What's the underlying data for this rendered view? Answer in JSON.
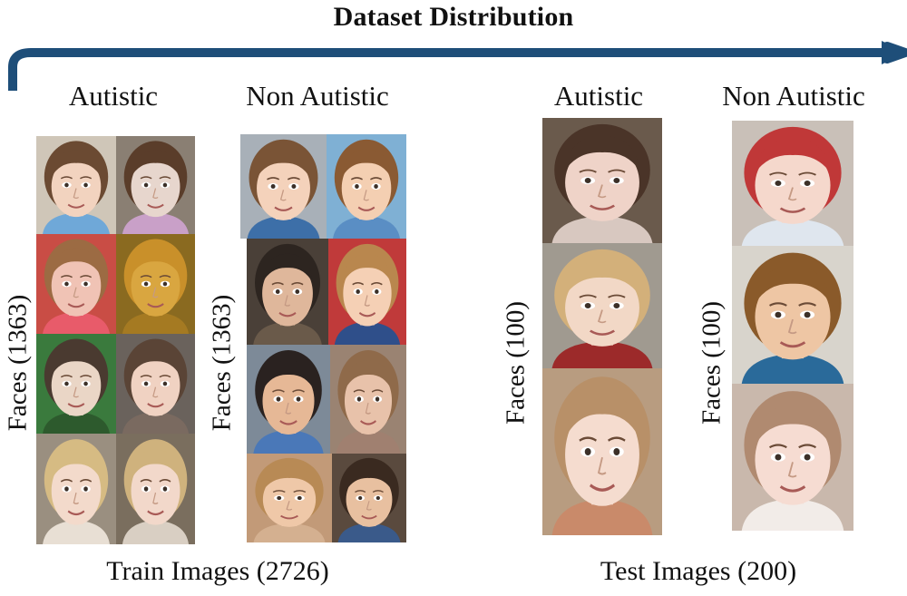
{
  "title": "Dataset Distribution",
  "colors": {
    "arrow": "#1e4e79",
    "background": "#ffffff",
    "text": "#111111"
  },
  "train": {
    "caption": "Train Images (2726)",
    "autistic": {
      "label": "Autistic",
      "count_label": "Faces (1363)"
    },
    "non_autistic": {
      "label": "Non Autistic",
      "count_label": "Faces (1363)"
    }
  },
  "test": {
    "caption": "Test Images (200)",
    "autistic": {
      "label": "Autistic",
      "count_label": "Faces (100)"
    },
    "non_autistic": {
      "label": "Non Autistic",
      "count_label": "Faces (100)"
    }
  },
  "face_palettes": [
    {
      "bg": "#cfc6b8",
      "skin": "#f2d3bf",
      "hair": "#6b4a32",
      "shirt": "#6fa8d8"
    },
    {
      "bg": "#8a7f73",
      "skin": "#e7d6cd",
      "hair": "#5a3d2a",
      "shirt": "#c9a0c8"
    },
    {
      "bg": "#c94d45",
      "skin": "#f0c3b5",
      "hair": "#9c6b43",
      "shirt": "#e85b6a"
    },
    {
      "bg": "#8a6a20",
      "skin": "#d9a640",
      "hair": "#c9902a",
      "shirt": "#a57a22"
    },
    {
      "bg": "#3a7a3d",
      "skin": "#ead6c6",
      "hair": "#4a3a30",
      "shirt": "#2d5a2d"
    },
    {
      "bg": "#6a625c",
      "skin": "#f0d2c2",
      "hair": "#5a4436",
      "shirt": "#7a6a60"
    },
    {
      "bg": "#9a8f80",
      "skin": "#f3dacb",
      "hair": "#d6bb83",
      "shirt": "#e8dfd4"
    },
    {
      "bg": "#7a6e5e",
      "skin": "#f2d8ca",
      "hair": "#cfb27d",
      "shirt": "#d9cfc3"
    },
    {
      "bg": "#a8b0b8",
      "skin": "#f4d2bb",
      "hair": "#7a5436",
      "shirt": "#3d6fa8"
    },
    {
      "bg": "#7fb0d4",
      "skin": "#f4cfb2",
      "hair": "#8a5a33",
      "shirt": "#5a8ec4"
    },
    {
      "bg": "#4a4038",
      "skin": "#dfb79b",
      "hair": "#2d2520",
      "shirt": "#6a5a4a"
    },
    {
      "bg": "#c03a3a",
      "skin": "#f5d0b5",
      "hair": "#b9874e",
      "shirt": "#2f4f8a"
    },
    {
      "bg": "#7d8a98",
      "skin": "#e6b896",
      "hair": "#2a2220",
      "shirt": "#4a78b8"
    },
    {
      "bg": "#9a8372",
      "skin": "#e8c2aa",
      "hair": "#8f6a4a",
      "shirt": "#a08070"
    },
    {
      "bg": "#c29a78",
      "skin": "#efc8a8",
      "hair": "#b88a55",
      "shirt": "#d4b090"
    },
    {
      "bg": "#5a4a3e",
      "skin": "#e8c0a0",
      "hair": "#3a2a20",
      "shirt": "#3a5a8a"
    },
    {
      "bg": "#6a5a4c",
      "skin": "#efd3c8",
      "hair": "#4a3428",
      "shirt": "#d8c8c0"
    },
    {
      "bg": "#a09a90",
      "skin": "#f2d8c6",
      "hair": "#d3b07a",
      "shirt": "#9c2a2a"
    },
    {
      "bg": "#b89c80",
      "skin": "#f5dccf",
      "hair": "#b89068",
      "shirt": "#c98a6a"
    },
    {
      "bg": "#c9c0b8",
      "skin": "#f5d8cc",
      "hair": "#c03838",
      "shirt": "#dfe6ee"
    },
    {
      "bg": "#d8d4cc",
      "skin": "#eec6a4",
      "hair": "#8a5a2a",
      "shirt": "#2a6a9a"
    },
    {
      "bg": "#c9b8ac",
      "skin": "#f6dcd2",
      "hair": "#b08a70",
      "shirt": "#f2ece8"
    }
  ]
}
